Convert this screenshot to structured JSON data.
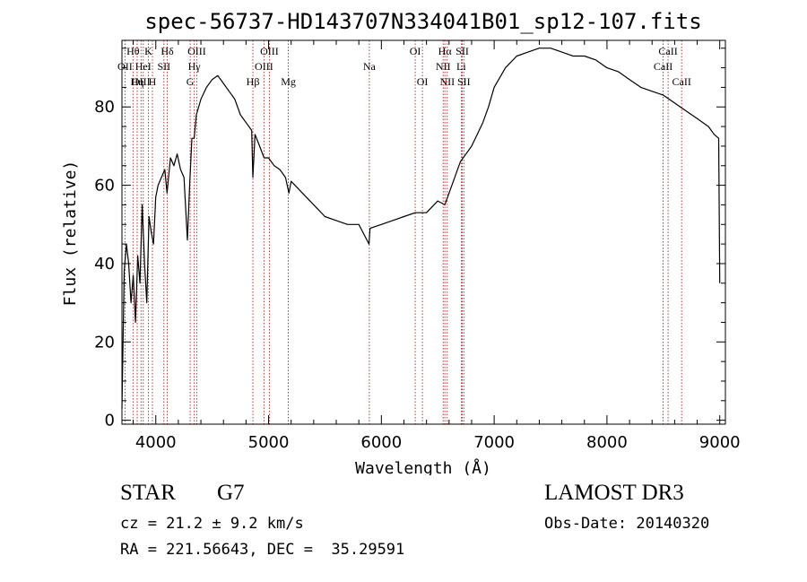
{
  "chart_data": {
    "type": "line",
    "title": "spec-56737-HD143707N334041B01_sp12-107.fits",
    "xlabel": "Wavelength (Å)",
    "ylabel": "Flux (relative)",
    "xlim": [
      3700,
      9050
    ],
    "ylim": [
      -1,
      97
    ],
    "xticks": [
      4000,
      5000,
      6000,
      7000,
      8000,
      9000
    ],
    "yticks": [
      0,
      20,
      40,
      60,
      80
    ],
    "series": [
      {
        "name": "flux",
        "x": [
          3700,
          3720,
          3740,
          3760,
          3780,
          3800,
          3820,
          3840,
          3860,
          3880,
          3900,
          3920,
          3940,
          3960,
          3980,
          4000,
          4020,
          4050,
          4080,
          4100,
          4130,
          4160,
          4190,
          4220,
          4250,
          4280,
          4300,
          4320,
          4340,
          4360,
          4400,
          4450,
          4500,
          4550,
          4600,
          4650,
          4700,
          4750,
          4800,
          4850,
          4861,
          4880,
          4920,
          4960,
          5000,
          5050,
          5100,
          5150,
          5180,
          5200,
          5300,
          5400,
          5500,
          5600,
          5700,
          5800,
          5890,
          5900,
          6000,
          6100,
          6200,
          6300,
          6400,
          6500,
          6563,
          6600,
          6650,
          6700,
          6750,
          6800,
          6850,
          6900,
          6950,
          7000,
          7100,
          7200,
          7300,
          7400,
          7500,
          7600,
          7700,
          7800,
          7900,
          8000,
          8100,
          8200,
          8300,
          8400,
          8500,
          8600,
          8700,
          8800,
          8900,
          8950,
          8990,
          9000
        ],
        "y": [
          3,
          38,
          45,
          40,
          30,
          37,
          25,
          42,
          35,
          55,
          40,
          30,
          52,
          48,
          45,
          57,
          60,
          62,
          64,
          58,
          67,
          65,
          68,
          64,
          62,
          46,
          60,
          72,
          72,
          78,
          82,
          85,
          87,
          88,
          86,
          84,
          82,
          78,
          76,
          74,
          62,
          73,
          70,
          67,
          67,
          65,
          64,
          62,
          58,
          61,
          58,
          55,
          52,
          51,
          50,
          50,
          45,
          49,
          50,
          51,
          52,
          53,
          53,
          56,
          55,
          58,
          62,
          66,
          68,
          70,
          73,
          76,
          80,
          85,
          90,
          93,
          94,
          95,
          95,
          94,
          93,
          93,
          92,
          90,
          89,
          87,
          85,
          84,
          83,
          81,
          79,
          77,
          75,
          73,
          72,
          35
        ]
      }
    ],
    "line_markers": [
      {
        "label": "Hθ",
        "x": 3798,
        "row": 0
      },
      {
        "label": "K",
        "x": 3934,
        "row": 0
      },
      {
        "label": "Hδ",
        "x": 4102,
        "row": 0
      },
      {
        "label": "OII",
        "x": 3727,
        "row": 1
      },
      {
        "label": "HeI",
        "x": 3889,
        "row": 1
      },
      {
        "label": "SII",
        "x": 4072,
        "row": 1
      },
      {
        "label": "OIII",
        "x": 3869,
        "row": 2
      },
      {
        "label": "Hη",
        "x": 3835,
        "row": 2
      },
      {
        "label": "H",
        "x": 3970,
        "row": 2
      },
      {
        "label": "OIII",
        "x": 4363,
        "row": 0
      },
      {
        "label": "Hγ",
        "x": 4341,
        "row": 1
      },
      {
        "label": "G",
        "x": 4305,
        "row": 2
      },
      {
        "label": "OIII",
        "x": 5007,
        "row": 0
      },
      {
        "label": "OIII",
        "x": 4959,
        "row": 1
      },
      {
        "label": "Hβ",
        "x": 4861,
        "row": 2
      },
      {
        "label": "Mg",
        "x": 5175,
        "row": 2
      },
      {
        "label": "Na",
        "x": 5893,
        "row": 1
      },
      {
        "label": "OI",
        "x": 6300,
        "row": 0
      },
      {
        "label": "OI",
        "x": 6364,
        "row": 2
      },
      {
        "label": "Hα",
        "x": 6563,
        "row": 0
      },
      {
        "label": "SII",
        "x": 6717,
        "row": 0
      },
      {
        "label": "NII",
        "x": 6548,
        "row": 1
      },
      {
        "label": "Li",
        "x": 6708,
        "row": 1
      },
      {
        "label": "NII",
        "x": 6584,
        "row": 2
      },
      {
        "label": "SII",
        "x": 6731,
        "row": 2
      },
      {
        "label": "CaII",
        "x": 8542,
        "row": 0
      },
      {
        "label": "CaII",
        "x": 8498,
        "row": 1
      },
      {
        "label": "CaII",
        "x": 8662,
        "row": 2
      }
    ]
  },
  "info": {
    "object_class": "STAR",
    "subclass": "G7",
    "survey": "LAMOST DR3",
    "redshift": "cz = 21.2 ± 9.2 km/s",
    "obs_date": "Obs-Date: 20140320",
    "coords": "RA = 221.56643, DEC =  35.29591"
  },
  "colors": {
    "axis": "#000000",
    "flux_line": "#000000",
    "marker_line": "#b22222"
  }
}
